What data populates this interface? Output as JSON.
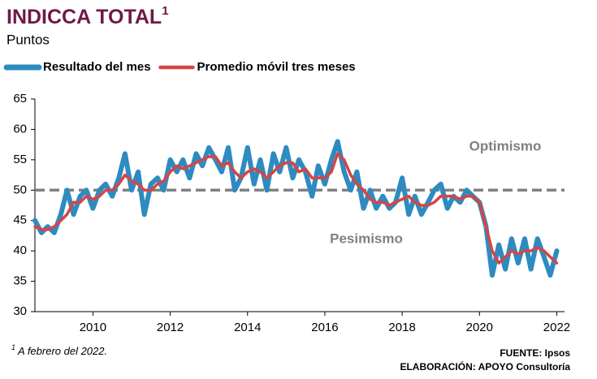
{
  "chart_data": {
    "type": "line",
    "title": "INDICCA TOTAL",
    "title_superscript": "1",
    "subtitle": "Puntos",
    "footnote": {
      "marker": "1",
      "text": "A febrero del 2022."
    },
    "source": "FUENTE: Ipsos",
    "credit": "ELABORACIÓN: APOYO Consultoría",
    "reference_line": 50,
    "annotations": [
      "Optimismo",
      "Pesimismo"
    ],
    "x": [
      2008.5,
      2008.67,
      2008.83,
      2009,
      2009.17,
      2009.33,
      2009.5,
      2009.67,
      2009.83,
      2010,
      2010.17,
      2010.33,
      2010.5,
      2010.67,
      2010.83,
      2011,
      2011.17,
      2011.33,
      2011.5,
      2011.67,
      2011.83,
      2012,
      2012.17,
      2012.33,
      2012.5,
      2012.67,
      2012.83,
      2013,
      2013.17,
      2013.33,
      2013.5,
      2013.67,
      2013.83,
      2014,
      2014.17,
      2014.33,
      2014.5,
      2014.67,
      2014.83,
      2015,
      2015.17,
      2015.33,
      2015.5,
      2015.67,
      2015.83,
      2016,
      2016.17,
      2016.33,
      2016.5,
      2016.67,
      2016.83,
      2017,
      2017.17,
      2017.33,
      2017.5,
      2017.67,
      2017.83,
      2018,
      2018.17,
      2018.33,
      2018.5,
      2018.67,
      2018.83,
      2019,
      2019.17,
      2019.33,
      2019.5,
      2019.67,
      2019.83,
      2020,
      2020.17,
      2020.33,
      2020.5,
      2020.67,
      2020.83,
      2021,
      2021.17,
      2021.33,
      2021.5,
      2021.67,
      2021.83,
      2022
    ],
    "series": [
      {
        "name": "Resultado del mes",
        "color": "#2e8bc0",
        "width": 6,
        "values": [
          45,
          43,
          44,
          43,
          46,
          50,
          46,
          49,
          50,
          47,
          50,
          51,
          49,
          52,
          56,
          50,
          53,
          46,
          51,
          52,
          50,
          55,
          53,
          55,
          52,
          56,
          54,
          57,
          55,
          53,
          57,
          50,
          52,
          57,
          51,
          55,
          50,
          56,
          53,
          57,
          52,
          55,
          53,
          49,
          54,
          51,
          55,
          58,
          53,
          50,
          53,
          47,
          50,
          47,
          49,
          47,
          48,
          52,
          46,
          49,
          46,
          48,
          50,
          51,
          47,
          49,
          48,
          50,
          49,
          48,
          44,
          36,
          41,
          37,
          42,
          38,
          42,
          37,
          42,
          39,
          36,
          40
        ]
      },
      {
        "name": "Promedio móvil tres meses",
        "color": "#d64545",
        "width": 3.5,
        "values": [
          44,
          43.5,
          43.5,
          44,
          45,
          46,
          48,
          48,
          49,
          48.5,
          49,
          50,
          50,
          51,
          52.5,
          51.5,
          51,
          50,
          50,
          51,
          51.5,
          53,
          54,
          53.5,
          54,
          54.5,
          55,
          55.5,
          55.5,
          54,
          54.5,
          53,
          52,
          53,
          53.5,
          53,
          52,
          53,
          54,
          54.5,
          54.5,
          53,
          53.5,
          52,
          52,
          52,
          53,
          56,
          55,
          52.5,
          51,
          50,
          48.5,
          48,
          48,
          47.5,
          48,
          48.5,
          49,
          48,
          47.5,
          47.5,
          48,
          49,
          49,
          49,
          48.5,
          49,
          49,
          48,
          44,
          40,
          38,
          39,
          40,
          39.5,
          40,
          40,
          40.5,
          40,
          39,
          38
        ]
      }
    ],
    "xlim": [
      2008.5,
      2022.2
    ],
    "xticks": [
      2010,
      2012,
      2014,
      2016,
      2018,
      2020,
      2022
    ],
    "ylim": [
      30,
      65
    ],
    "yticks": [
      30,
      35,
      40,
      45,
      50,
      55,
      60,
      65
    ],
    "grid": false
  }
}
